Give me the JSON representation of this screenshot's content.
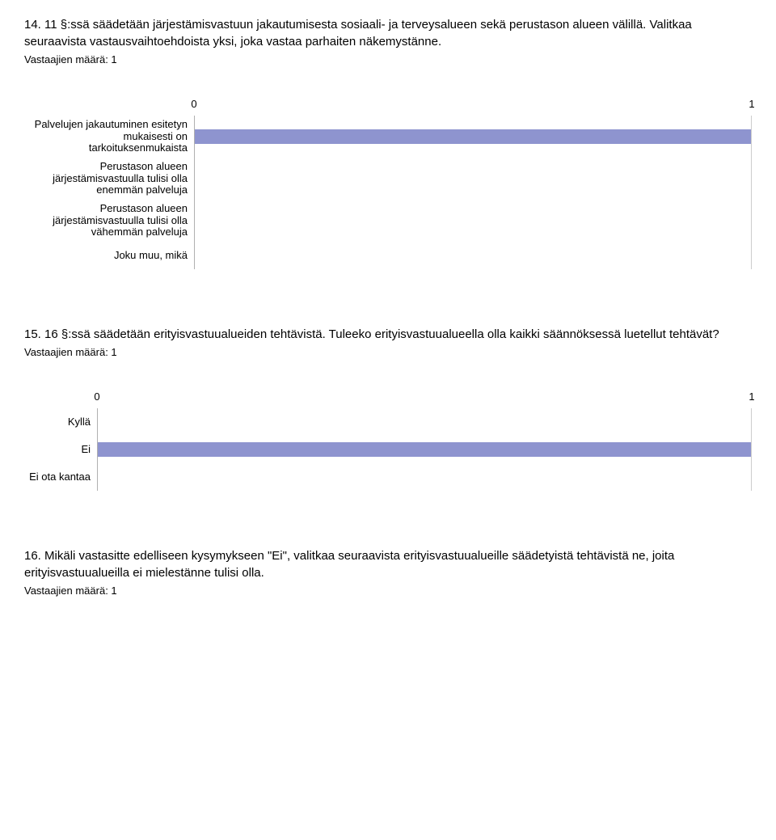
{
  "q14": {
    "prompt": "14. 11 §:ssä säädetään järjestämisvastuun jakautumisesta sosiaali- ja terveysalueen sekä perustason alueen välillä. Valitkaa seuraavista vastausvaihtoehdoista yksi, joka vastaa parhaiten näkemystänne.",
    "meta": "Vastaajien määrä: 1",
    "chart": {
      "type": "bar",
      "label_width": 210,
      "axis_min": 0,
      "axis_max": 1,
      "axis_ticks": [
        {
          "pos": 0,
          "label": "0"
        },
        {
          "pos": 1,
          "label": "1"
        }
      ],
      "bar_color": "#8e94cf",
      "border_color": "#b0b0b0",
      "rows": [
        {
          "label": "Palvelujen jakautuminen esitetyn mukaisesti on tarkoituksenmukaista",
          "value": 1,
          "tall": true
        },
        {
          "label": "Perustason alueen järjestämisvastuulla tulisi olla enemmän palveluja",
          "value": 0,
          "tall": true
        },
        {
          "label": "Perustason alueen järjestämisvastuulla tulisi olla vähemmän palveluja",
          "value": 0,
          "tall": true
        },
        {
          "label": "Joku muu, mikä",
          "value": 0,
          "tall": false
        }
      ]
    }
  },
  "q15": {
    "prompt": "15. 16 §:ssä säädetään erityisvastuualueiden tehtävistä. Tuleeko erityisvastuualueella olla kaikki säännöksessä luetellut tehtävät?",
    "meta": "Vastaajien määrä: 1",
    "chart": {
      "type": "bar",
      "label_width": 90,
      "axis_min": 0,
      "axis_max": 1,
      "axis_ticks": [
        {
          "pos": 0,
          "label": "0"
        },
        {
          "pos": 1,
          "label": "1"
        }
      ],
      "bar_color": "#8e94cf",
      "border_color": "#b0b0b0",
      "rows": [
        {
          "label": "Kyllä",
          "value": 0,
          "tall": false
        },
        {
          "label": "Ei",
          "value": 1,
          "tall": false
        },
        {
          "label": "Ei ota kantaa",
          "value": 0,
          "tall": false
        }
      ]
    }
  },
  "q16": {
    "prompt": "16. Mikäli vastasitte edelliseen kysymykseen \"Ei\", valitkaa seuraavista erityisvastuualueille säädetyistä tehtävistä ne, joita erityisvastuualueilla ei mielestänne tulisi olla.",
    "meta": "Vastaajien määrä: 1"
  }
}
